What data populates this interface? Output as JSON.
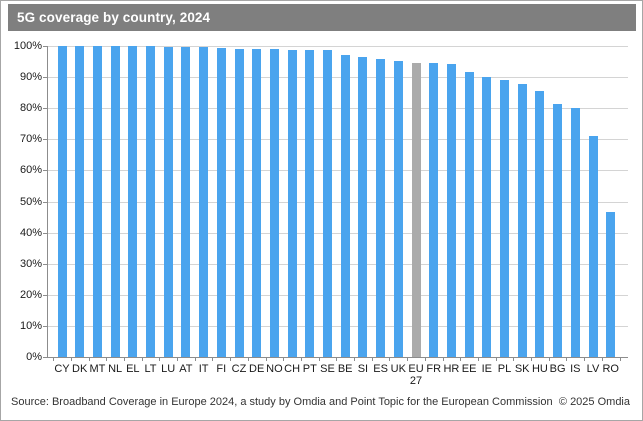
{
  "title": "5G coverage by country, 2024",
  "footer": {
    "source": "Source: Broadband Coverage in Europe 2024, a study by Omdia and Point Topic for the European Commission",
    "copyright": "© 2025 Omdia"
  },
  "colors": {
    "title_bar_bg": "#7f7f7f",
    "title_text": "#ffffff",
    "bar": "#4aa4ee",
    "highlight_bar": "#ababab",
    "gridline": "#d4d4d4",
    "axis": "#8c8c8c",
    "tick_text": "#1a1a1a",
    "frame_border": "#a6a6a6"
  },
  "chart_data": {
    "type": "bar",
    "title": "5G coverage by country, 2024",
    "xlabel": "",
    "ylabel": "",
    "ylim": [
      0,
      100
    ],
    "ytick_step": 10,
    "yticks": [
      "0%",
      "10%",
      "20%",
      "30%",
      "40%",
      "50%",
      "60%",
      "70%",
      "80%",
      "90%",
      "100%"
    ],
    "grid": true,
    "legend": false,
    "unit": "percent",
    "highlighted_category": "EU 27",
    "categories": [
      "CY",
      "DK",
      "MT",
      "NL",
      "EL",
      "LT",
      "LU",
      "AT",
      "IT",
      "FI",
      "CZ",
      "DE",
      "NO",
      "CH",
      "PT",
      "SE",
      "BE",
      "SI",
      "ES",
      "UK",
      "EU 27",
      "FR",
      "HR",
      "EE",
      "IE",
      "PL",
      "SK",
      "HU",
      "BG",
      "IS",
      "LV",
      "RO"
    ],
    "values": [
      100,
      100,
      100,
      100,
      100,
      100,
      99.7,
      99.6,
      99.6,
      99.5,
      99.2,
      99.1,
      99.0,
      98.8,
      98.8,
      98.7,
      97.0,
      96.6,
      95.8,
      95.1,
      94.5,
      94.4,
      94.1,
      91.5,
      90.0,
      89.1,
      87.9,
      85.7,
      81.3,
      80.2,
      71.0,
      46.8
    ]
  }
}
